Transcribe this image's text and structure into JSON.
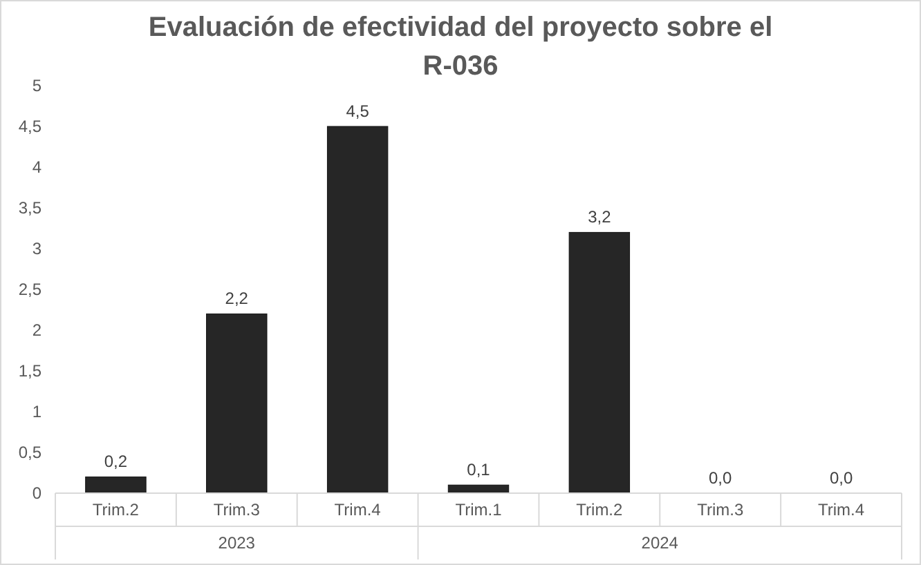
{
  "chart_data": {
    "type": "bar",
    "title": "Evaluación de efectividad del proyecto sobre el R-036",
    "categories": [
      "Trim.2",
      "Trim.3",
      "Trim.4",
      "Trim.1",
      "Trim.2",
      "Trim.3",
      "Trim.4"
    ],
    "values": [
      0.2,
      2.2,
      4.5,
      0.1,
      3.2,
      0,
      0
    ],
    "value_labels": [
      "0,2",
      "2,2",
      "4,5",
      "0,1",
      "3,2",
      "0,0",
      "0,0"
    ],
    "color": "#262626",
    "ylim": [
      0,
      5
    ],
    "yticks": [
      0,
      {
        "value": 0.5,
        "label": "0,5"
      },
      1,
      {
        "value": 1.5,
        "label": "1,5"
      },
      2,
      {
        "value": 2.5,
        "label": "2,5"
      },
      3,
      {
        "value": 3.5,
        "label": "3,5"
      },
      4,
      {
        "value": 4.5,
        "label": "4,5"
      },
      5
    ],
    "annotations": [
      "2023",
      "2024"
    ],
    "grid": false
  }
}
